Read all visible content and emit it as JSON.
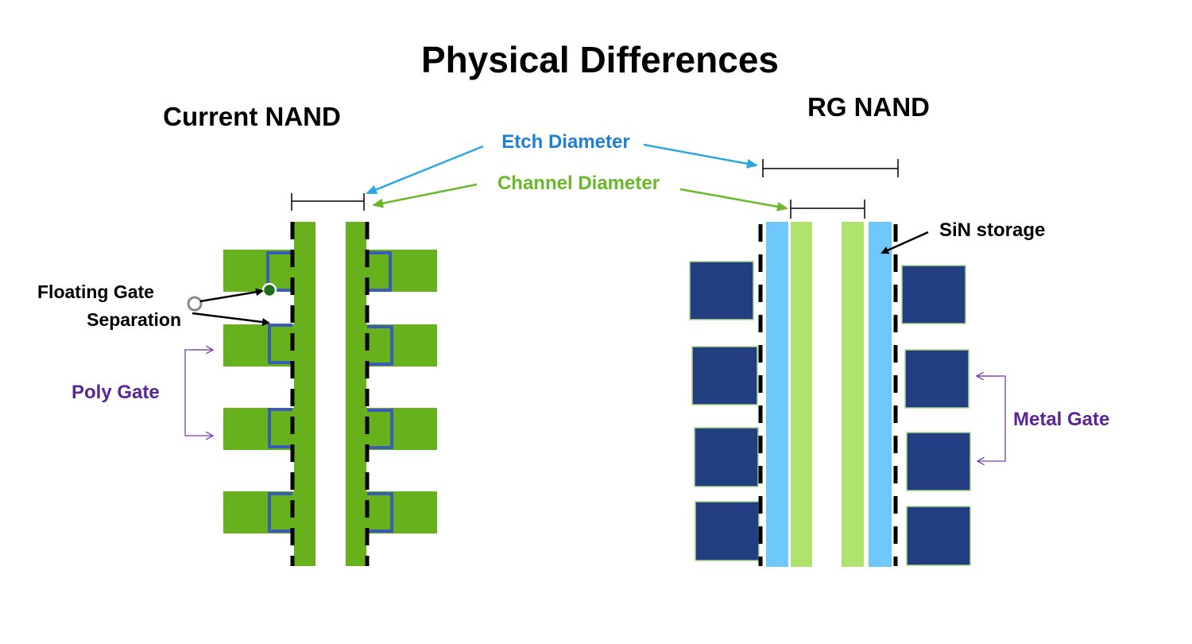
{
  "title": "Physical Differences",
  "left": {
    "heading": "Current NAND",
    "floating_gate_label_line1": "Floating Gate",
    "floating_gate_label_line2": "Separation",
    "poly_gate_label": "Poly Gate"
  },
  "right": {
    "heading": "RG NAND",
    "sin_storage_label": "SiN storage",
    "metal_gate_label": "Metal Gate"
  },
  "callouts": {
    "etch_diameter": "Etch Diameter",
    "channel_diameter": "Channel Diameter"
  },
  "colors": {
    "poly_green": "#67b21c",
    "floating_gate_blue": "#3a5cb8",
    "metal_gate_navy": "#233e80",
    "sin_blue": "#6ec8fc",
    "channel_light_green": "#aee46e",
    "etch_text": "#1f7fd0",
    "channel_text": "#6ab82a",
    "label_purple": "#5b2594"
  }
}
